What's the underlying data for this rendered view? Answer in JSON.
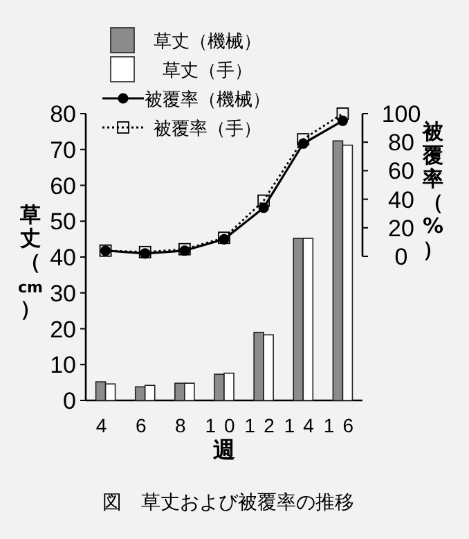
{
  "chart_data": {
    "type": "bar",
    "xlabel": "週",
    "ylabel": "草丈（cm）",
    "y2label": "被覆率（%）",
    "annotations": [
      "図　草丈および被覆率の推移"
    ],
    "categories": [
      "4",
      "6",
      "8",
      "10",
      "12",
      "14",
      "16"
    ],
    "series": [
      {
        "name": "草丈（機械）",
        "color": "#8c8c8c",
        "values": [
          5.2,
          3.8,
          4.8,
          7.3,
          19,
          45.2,
          72.4
        ]
      },
      {
        "name": "草丈（手）",
        "color": "#ffffff",
        "values": [
          4.6,
          4.2,
          4.8,
          7.6,
          18.3,
          45.2,
          71.2
        ]
      },
      {
        "name": "被覆率（機械）",
        "type": "line",
        "axis": "y2",
        "color": "#000000",
        "marker": "circle",
        "line_style": "solid",
        "values": [
          4,
          2,
          4,
          12,
          34,
          79,
          95
        ]
      },
      {
        "name": "被覆率（手）",
        "type": "line",
        "axis": "y2",
        "color": "#000000",
        "marker": "square",
        "line_style": "dotted",
        "values": [
          4,
          3,
          5,
          13,
          39,
          82,
          100
        ]
      }
    ],
    "ylim": [
      0,
      80
    ],
    "yticks": [
      0,
      10,
      20,
      30,
      40,
      50,
      60,
      70,
      80
    ],
    "y2lim": [
      0,
      100
    ],
    "y2ticks": [
      0,
      20,
      40,
      60,
      80,
      100
    ],
    "legend": "top"
  }
}
